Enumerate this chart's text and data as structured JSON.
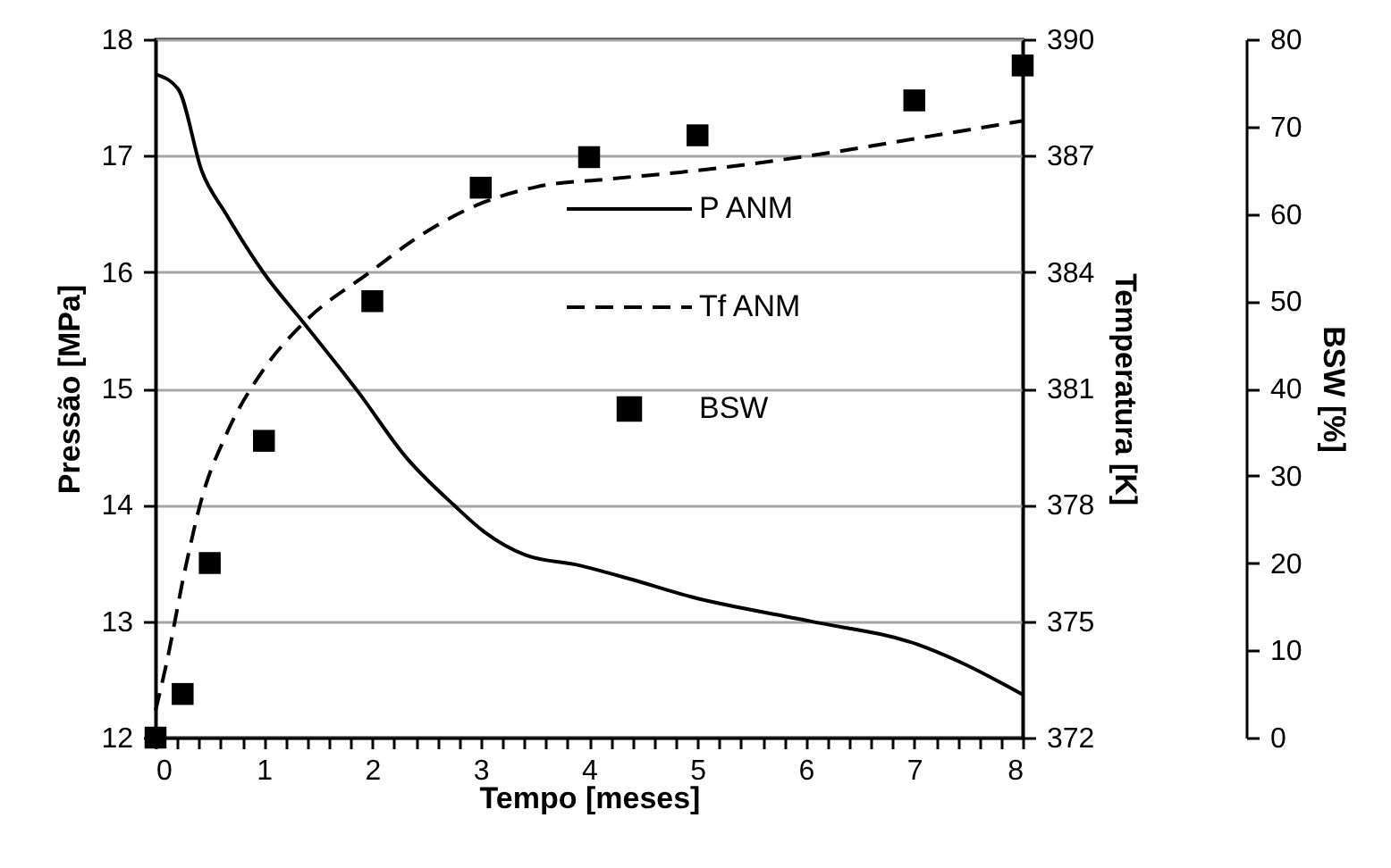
{
  "chart_data": {
    "type": "line",
    "xlabel": "Tempo [meses]",
    "ylabel": "Pressão [MPa]",
    "y2label": "Temperatura [K]",
    "y3label": "BSW [%]",
    "xlim": [
      0,
      8
    ],
    "xticks": [
      0,
      {
        "value": 0.2,
        "label": null
      },
      {
        "value": 0.4,
        "label": null
      },
      {
        "value": 0.6,
        "label": null
      },
      {
        "value": 0.8,
        "label": null
      },
      1,
      {
        "value": 1.2,
        "label": null
      },
      {
        "value": 1.4,
        "label": null
      },
      {
        "value": 1.6,
        "label": null
      },
      {
        "value": 1.8,
        "label": null
      },
      2,
      {
        "value": 2.2,
        "label": null
      },
      {
        "value": 2.4,
        "label": null
      },
      {
        "value": 2.6,
        "label": null
      },
      {
        "value": 2.8,
        "label": null
      },
      3,
      {
        "value": 3.2,
        "label": null
      },
      {
        "value": 3.4,
        "label": null
      },
      {
        "value": 3.6,
        "label": null
      },
      {
        "value": 3.8,
        "label": null
      },
      4,
      {
        "value": 4.2,
        "label": null
      },
      {
        "value": 4.4,
        "label": null
      },
      {
        "value": 4.6,
        "label": null
      },
      {
        "value": 4.8,
        "label": null
      },
      5,
      {
        "value": 5.2,
        "label": null
      },
      {
        "value": 5.4,
        "label": null
      },
      {
        "value": 5.6,
        "label": null
      },
      {
        "value": 5.8,
        "label": null
      },
      6,
      {
        "value": 6.2,
        "label": null
      },
      {
        "value": 6.4,
        "label": null
      },
      {
        "value": 6.6,
        "label": null
      },
      {
        "value": 6.8,
        "label": null
      },
      7,
      {
        "value": 7.2,
        "label": null
      },
      {
        "value": 7.4,
        "label": null
      },
      {
        "value": 7.6,
        "label": null
      },
      {
        "value": 7.8,
        "label": null
      },
      8
    ],
    "ylim": [
      12,
      18
    ],
    "yticks": [
      12,
      13,
      14,
      15,
      16,
      17,
      18
    ],
    "y2lim": [
      372,
      390
    ],
    "y2ticks": [
      372,
      375,
      378,
      381,
      384,
      387,
      390
    ],
    "y3lim": [
      0,
      80
    ],
    "y3ticks": [
      0,
      10,
      20,
      30,
      40,
      50,
      60,
      70,
      80
    ],
    "grid": "y",
    "legend": "right",
    "series": [
      {
        "name": "P ANM",
        "color": "#000000",
        "line_style": "solid",
        "x": [
          0,
          0.21,
          0.43,
          0.65,
          1.0,
          1.37,
          1.87,
          2.31,
          2.75,
          3.03,
          3.41,
          3.91,
          4.39,
          4.94,
          6.04,
          7.03,
          7.42,
          8.0
        ],
        "values": [
          17.7,
          17.57,
          16.86,
          16.5,
          15.99,
          15.56,
          14.97,
          14.41,
          14.0,
          13.77,
          13.57,
          13.48,
          13.36,
          13.21,
          13.0,
          12.8,
          12.65,
          12.37
        ]
      },
      {
        "name": "Tf ANM",
        "type": "line",
        "color": "#000000",
        "line_style": "dashed",
        "axis": "y2",
        "x": [
          0,
          0.1,
          0.27,
          0.43,
          0.65,
          1.0,
          1.37,
          1.98,
          2.42,
          3.03,
          3.52,
          4.19,
          4.94,
          6.04,
          7.14,
          8.0
        ],
        "values": [
          372.7,
          373.9,
          376.3,
          378.2,
          379.8,
          381.5,
          382.7,
          384.0,
          384.9,
          385.8,
          386.2,
          386.4,
          386.6,
          387.0,
          387.5,
          387.9
        ]
      },
      {
        "name": "BSW",
        "type": "scatter",
        "color": "#000000",
        "marker": "square",
        "axis": "y3",
        "x": [
          0,
          0.25,
          0.5,
          1,
          2,
          3,
          4,
          5,
          7,
          8
        ],
        "values": [
          0,
          5,
          20,
          34,
          50,
          63,
          66.5,
          69,
          73,
          77
        ]
      }
    ]
  }
}
